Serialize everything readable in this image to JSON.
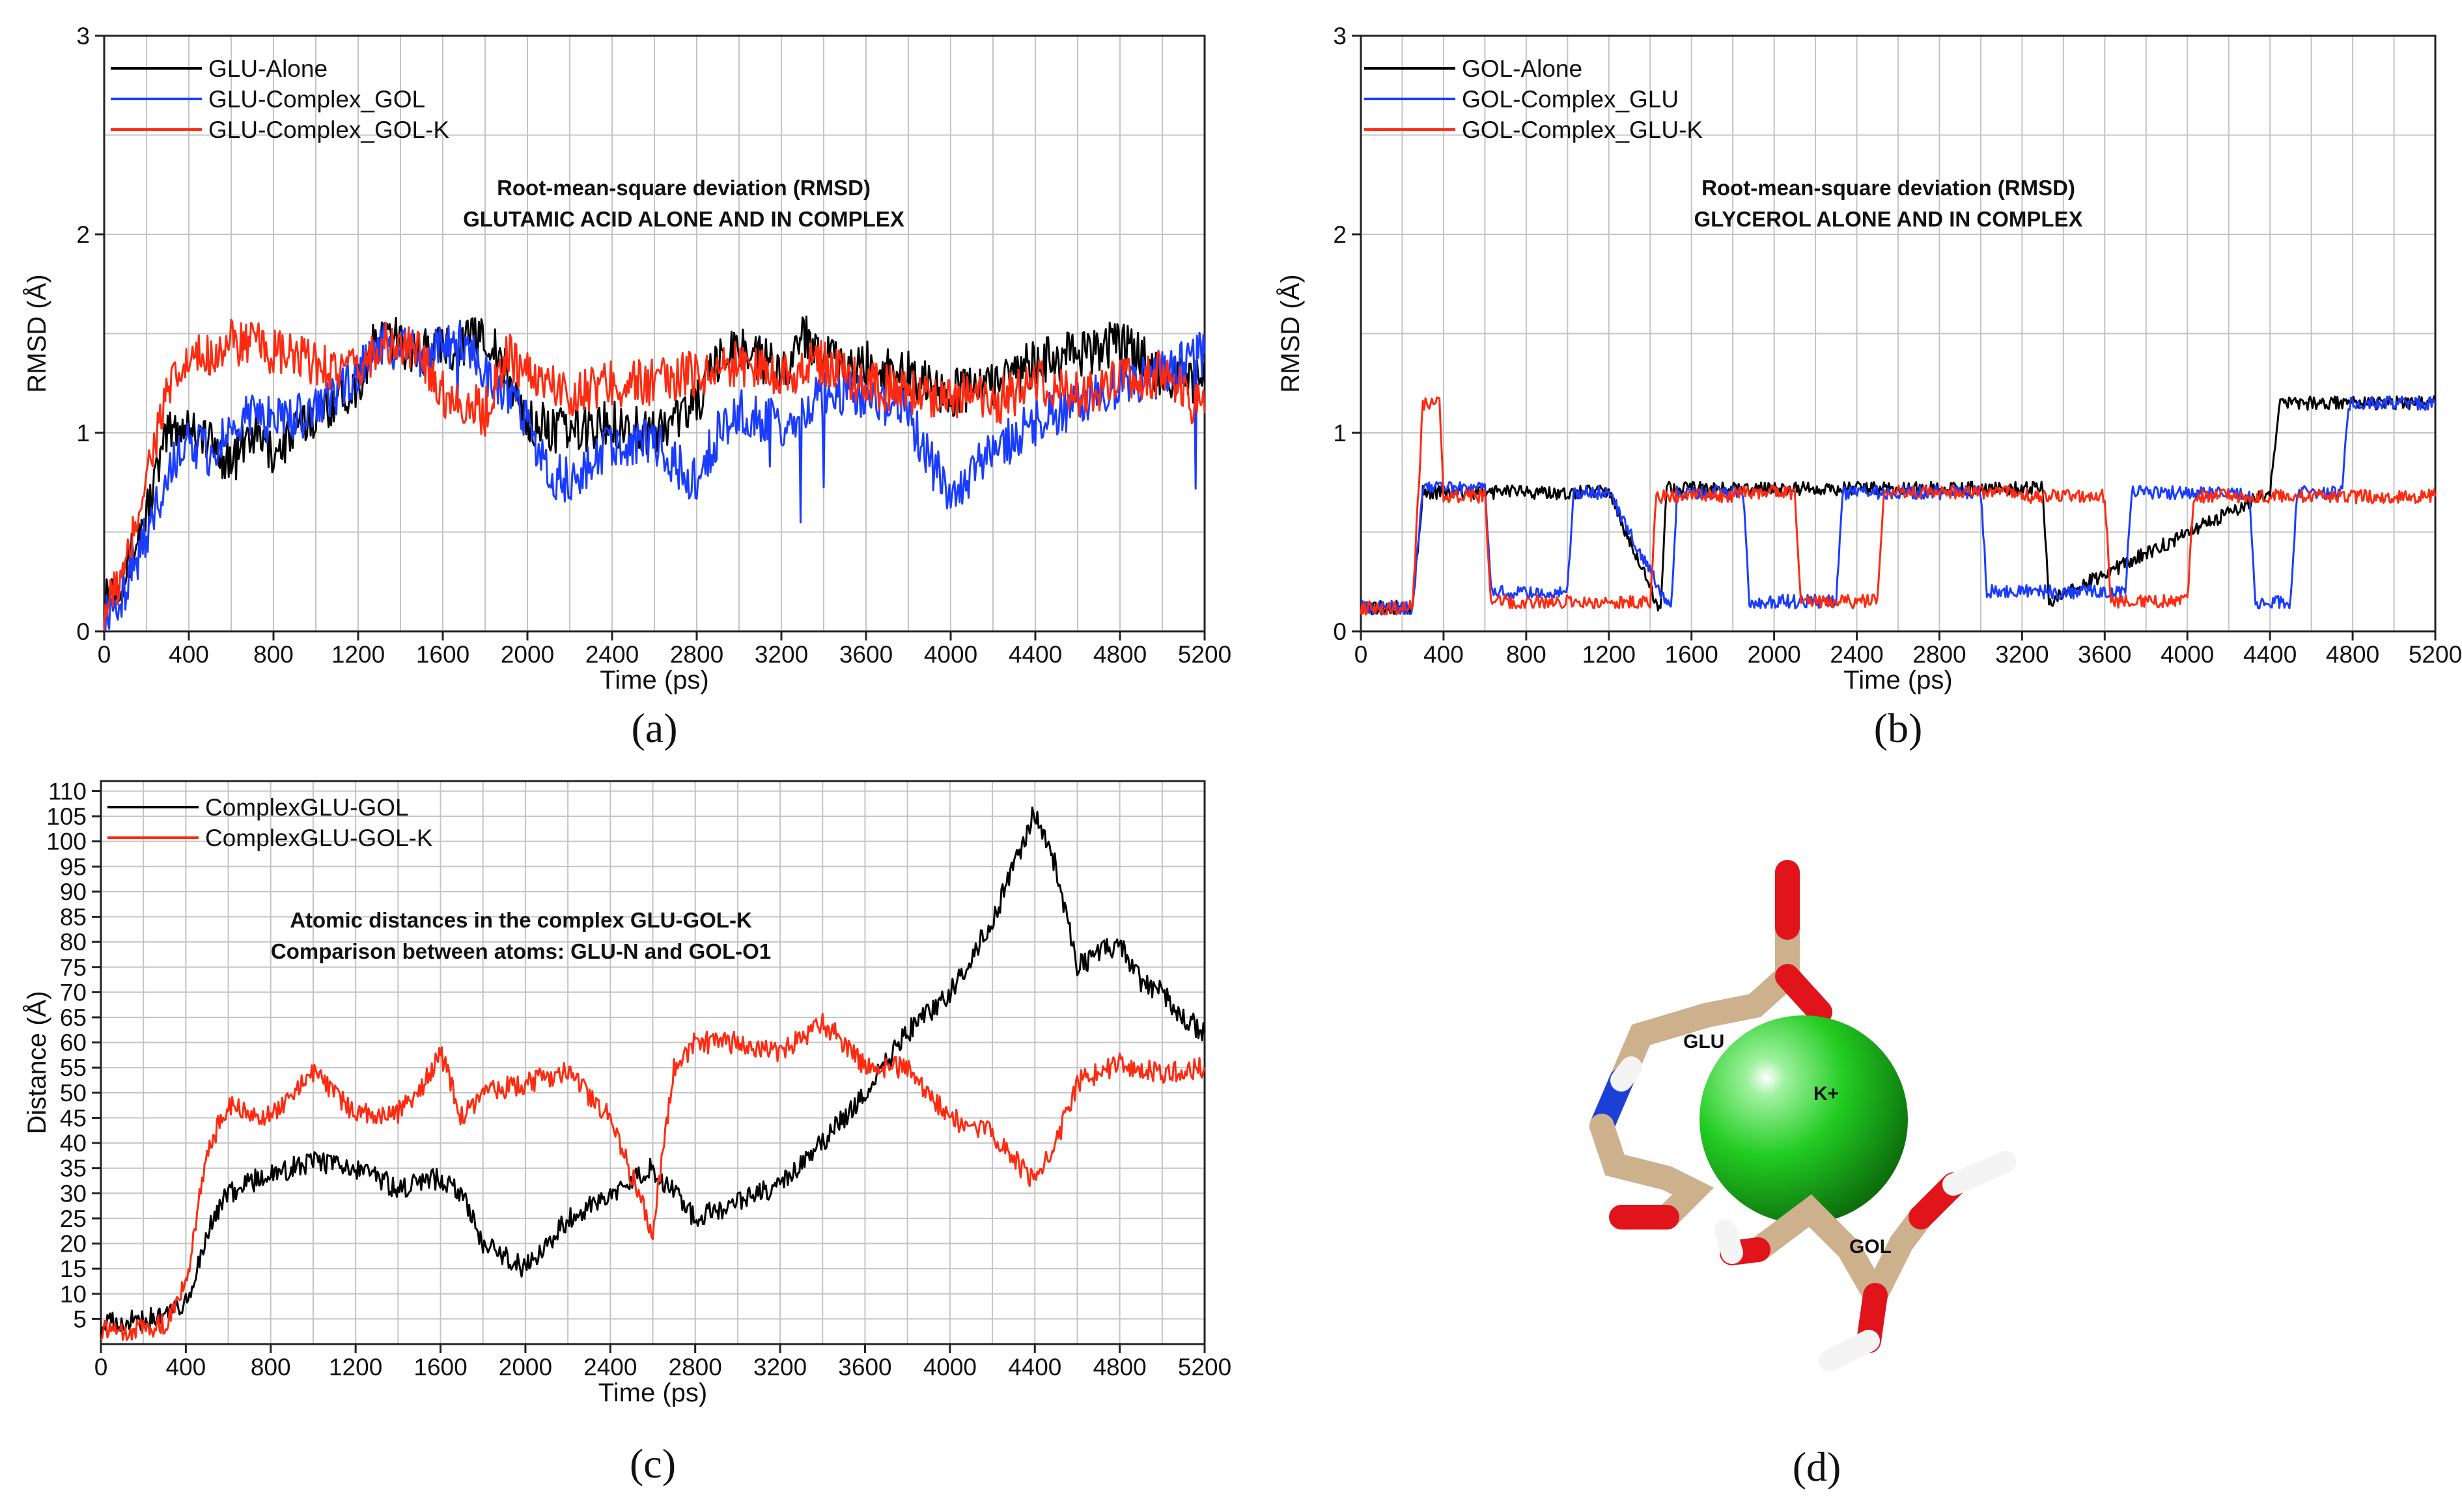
{
  "chart_data": [
    {
      "id": "a",
      "type": "line",
      "panel_label": "(a)",
      "title": "Root-mean-square deviation (RMSD)",
      "subtitle": "GLUTAMIC ACID ALONE AND IN COMPLEX",
      "xlabel": "Time (ps)",
      "ylabel": "RMSD (Å)",
      "xlim": [
        0,
        5200
      ],
      "ylim": [
        0,
        3
      ],
      "xticks": [
        "0",
        "400",
        "800",
        "1200",
        "1600",
        "2000",
        "2400",
        "2800",
        "3200",
        "3600",
        "4000",
        "4400",
        "4800",
        "5200"
      ],
      "yticks": [
        "0",
        "1",
        "2",
        "3"
      ],
      "legend": "top-left",
      "series": [
        {
          "name": "GLU-Alone",
          "color": "#000000",
          "x": [
            0,
            100,
            200,
            300,
            400,
            500,
            600,
            700,
            800,
            1000,
            1200,
            1300,
            1500,
            1700,
            1800,
            1900,
            2000,
            2200,
            2400,
            2600,
            2800,
            2900,
            3000,
            3200,
            3300,
            3500,
            3600,
            3800,
            4000,
            4200,
            4400,
            4600,
            4800,
            5000,
            5200
          ],
          "y": [
            0.2,
            0.3,
            0.6,
            1.0,
            1.05,
            0.95,
            0.85,
            1.0,
            0.9,
            1.1,
            1.25,
            1.5,
            1.4,
            1.45,
            1.5,
            1.3,
            1.05,
            1.0,
            1.05,
            1.0,
            1.15,
            1.35,
            1.45,
            1.3,
            1.5,
            1.3,
            1.35,
            1.3,
            1.2,
            1.25,
            1.35,
            1.4,
            1.45,
            1.3,
            1.25
          ]
        },
        {
          "name": "GLU-Complex_GOL",
          "color": "#1a3cff",
          "x": [
            0,
            100,
            200,
            300,
            400,
            500,
            600,
            700,
            800,
            1000,
            1200,
            1300,
            1500,
            1700,
            1800,
            2000,
            2100,
            2200,
            2400,
            2600,
            2800,
            2900,
            3000,
            3200,
            3400,
            3600,
            3800,
            3900,
            4000,
            4200,
            4400,
            4600,
            4800,
            5000,
            5200
          ],
          "y": [
            0.1,
            0.2,
            0.5,
            0.8,
            0.95,
            0.9,
            1.0,
            1.1,
            1.05,
            1.1,
            1.3,
            1.45,
            1.4,
            1.45,
            1.3,
            1.05,
            0.8,
            0.75,
            0.95,
            0.95,
            0.75,
            1.0,
            1.1,
            1.05,
            1.2,
            1.2,
            1.1,
            0.85,
            0.7,
            0.9,
            1.05,
            1.15,
            1.25,
            1.3,
            1.4
          ]
        },
        {
          "name": "GLU-Complex_GOL-K",
          "color": "#ff2a10",
          "x": [
            0,
            100,
            200,
            300,
            400,
            500,
            600,
            700,
            800,
            1000,
            1200,
            1300,
            1500,
            1600,
            1800,
            1900,
            2000,
            2200,
            2400,
            2600,
            2800,
            3000,
            3200,
            3400,
            3600,
            3800,
            4000,
            4200,
            4400,
            4600,
            4800,
            5000,
            5200
          ],
          "y": [
            0.1,
            0.3,
            0.8,
            1.2,
            1.35,
            1.4,
            1.45,
            1.45,
            1.4,
            1.35,
            1.3,
            1.45,
            1.4,
            1.2,
            1.1,
            1.4,
            1.3,
            1.2,
            1.25,
            1.25,
            1.3,
            1.35,
            1.3,
            1.35,
            1.25,
            1.2,
            1.2,
            1.15,
            1.25,
            1.2,
            1.25,
            1.3,
            1.1
          ]
        }
      ]
    },
    {
      "id": "b",
      "type": "line",
      "panel_label": "(b)",
      "title": "Root-mean-square deviation (RMSD)",
      "subtitle": "GLYCEROL ALONE AND IN COMPLEX",
      "xlabel": "Time (ps)",
      "ylabel": "RMSD (Å)",
      "xlim": [
        0,
        5200
      ],
      "ylim": [
        0,
        3
      ],
      "xticks": [
        "0",
        "400",
        "800",
        "1200",
        "1600",
        "2000",
        "2400",
        "2800",
        "3200",
        "3600",
        "4000",
        "4400",
        "4800",
        "5200"
      ],
      "yticks": [
        "0",
        "1",
        "2",
        "3"
      ],
      "legend": "top-left",
      "series": [
        {
          "name": "GOL-Alone",
          "color": "#000000",
          "x": [
            0,
            250,
            300,
            1200,
            1450,
            1480,
            3300,
            3330,
            4400,
            4450,
            5200
          ],
          "y": [
            0.12,
            0.12,
            0.7,
            0.7,
            0.1,
            0.72,
            0.72,
            0.15,
            0.7,
            1.15,
            1.15
          ]
        },
        {
          "name": "GOL-Complex_GLU",
          "color": "#1a3cff",
          "x": [
            0,
            250,
            300,
            600,
            630,
            1000,
            1030,
            1200,
            1500,
            1530,
            1850,
            1880,
            2300,
            2330,
            3000,
            3030,
            3700,
            3730,
            4300,
            4330,
            4500,
            4530,
            4750,
            4780,
            5200
          ],
          "y": [
            0.12,
            0.12,
            0.72,
            0.72,
            0.2,
            0.2,
            0.7,
            0.7,
            0.1,
            0.7,
            0.7,
            0.15,
            0.15,
            0.7,
            0.7,
            0.2,
            0.2,
            0.7,
            0.7,
            0.15,
            0.15,
            0.7,
            0.7,
            1.15,
            1.15
          ]
        },
        {
          "name": "GOL-Complex_GLU-K",
          "color": "#ff2a10",
          "x": [
            0,
            250,
            300,
            380,
            400,
            600,
            630,
            1400,
            1430,
            1800,
            1830,
            2100,
            2130,
            2500,
            2530,
            3200,
            3230,
            3600,
            3630,
            4000,
            4030,
            4350,
            4380,
            5200
          ],
          "y": [
            0.12,
            0.12,
            1.15,
            1.15,
            0.68,
            0.68,
            0.15,
            0.15,
            0.68,
            0.68,
            0.7,
            0.7,
            0.15,
            0.15,
            0.7,
            0.7,
            0.68,
            0.68,
            0.15,
            0.15,
            0.68,
            0.68,
            0.68,
            0.68
          ]
        }
      ]
    },
    {
      "id": "c",
      "type": "line",
      "panel_label": "(c)",
      "title": "Atomic distances in the complex GLU-GOL-K",
      "subtitle": "Comparison between atoms: GLU-N and GOL-O1",
      "xlabel": "Time (ps)",
      "ylabel": "Distance (Å)",
      "xlim": [
        0,
        5200
      ],
      "ylim": [
        0,
        112
      ],
      "xticks": [
        "0",
        "400",
        "800",
        "1200",
        "1600",
        "2000",
        "2400",
        "2800",
        "3200",
        "3600",
        "4000",
        "4400",
        "4800",
        "5200"
      ],
      "yticks": [
        "5",
        "10",
        "15",
        "20",
        "25",
        "30",
        "35",
        "40",
        "45",
        "50",
        "55",
        "60",
        "65",
        "70",
        "75",
        "80",
        "85",
        "90",
        "95",
        "100",
        "105",
        "110"
      ],
      "legend": "top-left",
      "series": [
        {
          "name": "ComplexGLU-GOL",
          "color": "#000000",
          "x": [
            0,
            200,
            300,
            400,
            500,
            600,
            800,
            1000,
            1200,
            1400,
            1600,
            1700,
            1800,
            2000,
            2200,
            2400,
            2600,
            2800,
            3000,
            3200,
            3400,
            3600,
            3800,
            4000,
            4200,
            4400,
            4500,
            4600,
            4800,
            4900,
            5000,
            5100,
            5200
          ],
          "y": [
            4,
            5,
            5,
            8,
            22,
            30,
            34,
            36,
            35,
            31,
            33,
            30,
            20,
            15,
            25,
            30,
            35,
            25,
            28,
            32,
            40,
            50,
            62,
            70,
            84,
            106,
            95,
            75,
            80,
            72,
            70,
            65,
            62
          ]
        },
        {
          "name": "ComplexGLU-GOL-K",
          "color": "#ff2a10",
          "x": [
            0,
            200,
            300,
            400,
            500,
            600,
            800,
            1000,
            1200,
            1400,
            1500,
            1600,
            1700,
            1800,
            2000,
            2200,
            2400,
            2600,
            2700,
            2800,
            3000,
            3200,
            3400,
            3500,
            3600,
            3800,
            4000,
            4200,
            4400,
            4500,
            4600,
            4800,
            5000,
            5200
          ],
          "y": [
            3,
            3,
            4,
            12,
            38,
            48,
            45,
            54,
            46,
            46,
            50,
            58,
            45,
            50,
            52,
            54,
            45,
            22,
            55,
            60,
            60,
            58,
            64,
            60,
            55,
            55,
            45,
            42,
            32,
            40,
            52,
            56,
            54,
            55
          ]
        }
      ]
    }
  ],
  "panel_d": {
    "panel_label": "(d)",
    "labels": {
      "glu": "GLU",
      "ion": "K+",
      "gol": "GOL"
    },
    "colors": {
      "carbon": "#cdb08c",
      "oxygen": "#e0141a",
      "nitrogen": "#1c3fd8",
      "hydrogen": "#f4f4f4",
      "potassium": "#22cc22"
    }
  }
}
